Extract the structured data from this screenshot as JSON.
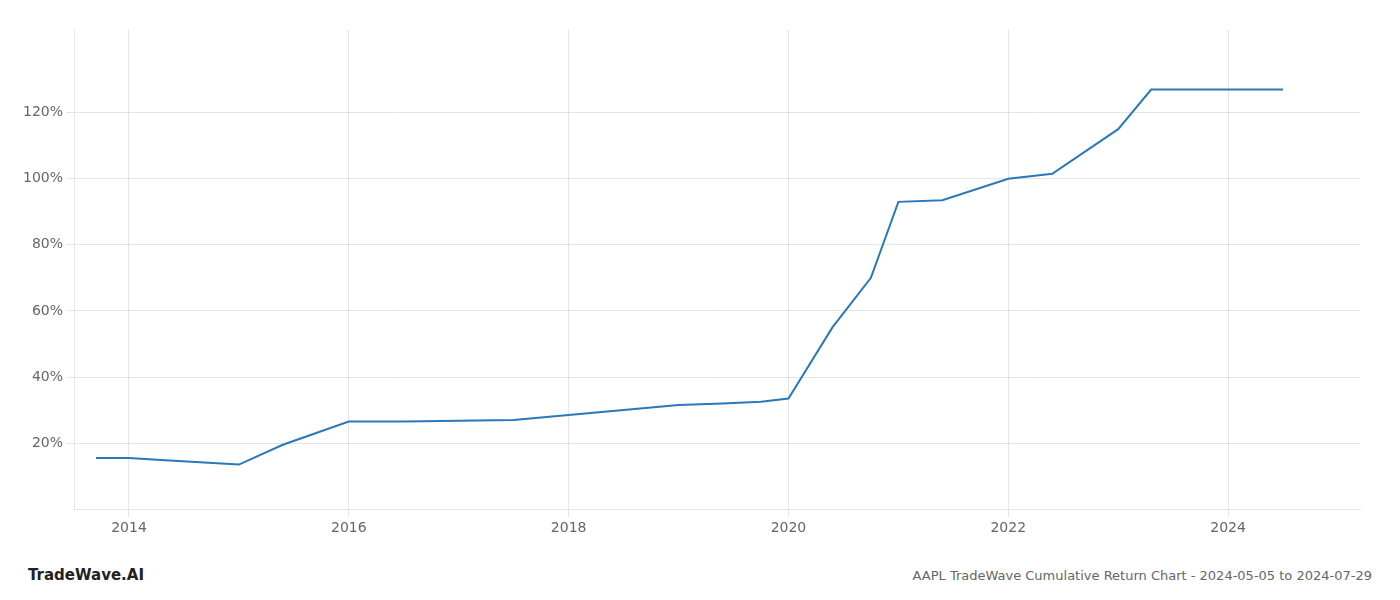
{
  "chart_data": {
    "type": "line",
    "title": "AAPL TradeWave Cumulative Return Chart - 2024-05-05 to 2024-07-29",
    "annotations": [
      "TradeWave.AI"
    ],
    "x": [
      2013.7,
      2014.0,
      2014.33,
      2015.0,
      2015.4,
      2016.0,
      2016.5,
      2017.0,
      2017.5,
      2018.0,
      2018.5,
      2019.0,
      2019.4,
      2019.75,
      2020.0,
      2020.4,
      2020.75,
      2021.0,
      2021.4,
      2022.0,
      2022.4,
      2023.0,
      2023.3,
      2023.5,
      2024.0,
      2024.5
    ],
    "values": [
      15.5,
      15.5,
      14.8,
      13.5,
      19.5,
      26.5,
      26.5,
      26.8,
      27.0,
      28.5,
      30.0,
      31.5,
      32.0,
      32.5,
      33.5,
      55.0,
      70.0,
      93.0,
      93.5,
      100.0,
      101.5,
      115.0,
      127.0,
      127.0,
      127.0,
      127.0
    ],
    "color": "#2979b8",
    "xlim": [
      2013.5,
      2025.2
    ],
    "xticks": [
      2014,
      2016,
      2018,
      2020,
      2022,
      2024
    ],
    "ylim": [
      0,
      145
    ],
    "yticks": [
      {
        "value": 20,
        "label": "20%"
      },
      {
        "value": 40,
        "label": "40%"
      },
      {
        "value": 60,
        "label": "60%"
      },
      {
        "value": 80,
        "label": "80%"
      },
      {
        "value": 100,
        "label": "100%"
      },
      {
        "value": 120,
        "label": "120%"
      }
    ],
    "grid": true
  }
}
